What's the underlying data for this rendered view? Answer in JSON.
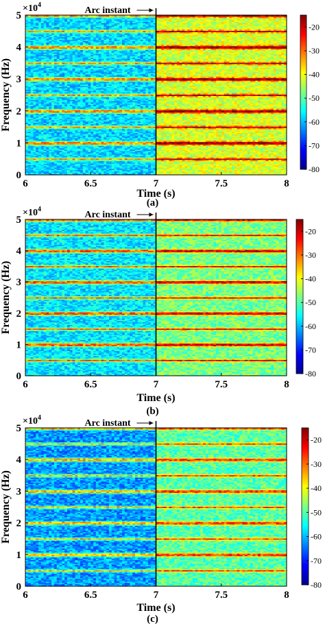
{
  "chart_data": [
    {
      "type": "heatmap",
      "panel_label": "(a)",
      "xlabel": "Time (s)",
      "ylabel": "Frequency (Hz)",
      "y_multiplier": "×10",
      "y_multiplier_exp": "4",
      "x_ticks": [
        "6",
        "6.5",
        "7",
        "7.5",
        "8"
      ],
      "y_ticks": [
        "0",
        "1",
        "2",
        "3",
        "4",
        "5"
      ],
      "xlim": [
        6,
        8
      ],
      "ylim": [
        0,
        5
      ],
      "colorbar_ticks": [
        "-20",
        "-30",
        "-40",
        "-50",
        "-60",
        "-70",
        "-80"
      ],
      "colorbar_range": [
        -80,
        -15
      ],
      "annotation": "Arc instant",
      "event_time": 7,
      "harmonic_band_interval": 0.5,
      "background_level_before": -58,
      "background_level_after": -42,
      "band_level_before": -33,
      "band_level_after": -18
    },
    {
      "type": "heatmap",
      "panel_label": "(b)",
      "xlabel": "Time (s)",
      "ylabel": "Frequency (Hz)",
      "y_multiplier": "×10",
      "y_multiplier_exp": "4",
      "x_ticks": [
        "6",
        "6.5",
        "7",
        "7.5",
        "8"
      ],
      "y_ticks": [
        "0",
        "1",
        "2",
        "3",
        "4",
        "5"
      ],
      "xlim": [
        6,
        8
      ],
      "ylim": [
        0,
        5
      ],
      "colorbar_ticks": [
        "-20",
        "-30",
        "-40",
        "-50",
        "-60",
        "-70",
        "-80"
      ],
      "colorbar_range": [
        -80,
        -15
      ],
      "annotation": "Arc instant",
      "event_time": 7,
      "harmonic_band_interval": 0.5,
      "background_level_before": -57,
      "background_level_after": -48,
      "band_level_before": -30,
      "band_level_after": -22
    },
    {
      "type": "heatmap",
      "panel_label": "(c)",
      "xlabel": "Time (s)",
      "ylabel": "Frequency (Hz)",
      "y_multiplier": "×10",
      "y_multiplier_exp": "4",
      "x_ticks": [
        "6",
        "6.5",
        "7",
        "7.5",
        "8"
      ],
      "y_ticks": [
        "0",
        "1",
        "2",
        "3",
        "4",
        "5"
      ],
      "xlim": [
        6,
        8
      ],
      "ylim": [
        0,
        5
      ],
      "colorbar_ticks": [
        "-20",
        "-30",
        "-40",
        "-50",
        "-60",
        "-70",
        "-80"
      ],
      "colorbar_range": [
        -80,
        -15
      ],
      "annotation": "Arc instant",
      "event_time": 7,
      "harmonic_band_interval": 0.5,
      "background_level_before": -62,
      "background_level_after": -50,
      "band_level_before": -36,
      "band_level_after": -28
    }
  ]
}
